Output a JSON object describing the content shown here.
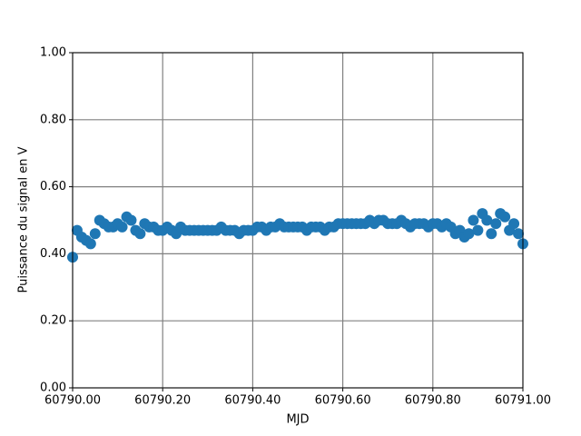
{
  "chart_data": {
    "type": "scatter",
    "x_label": "MJD",
    "y_label": "Puissance du signal en V",
    "color": "#1f77b4",
    "grid": true,
    "xlim": [
      60790,
      60791
    ],
    "xticks": [
      {
        "value": 60790,
        "label": "60790.00"
      },
      {
        "value": 60790.2,
        "label": "60790.20"
      },
      {
        "value": 60790.4,
        "label": "60790.40"
      },
      {
        "value": 60790.6,
        "label": "60790.60"
      },
      {
        "value": 60790.8,
        "label": "60790.80"
      },
      {
        "value": 60791,
        "label": "60791.00"
      }
    ],
    "ylim": [
      0,
      1
    ],
    "yticks": [
      {
        "value": 0,
        "label": "0.00"
      },
      {
        "value": 0.2,
        "label": "0.20"
      },
      {
        "value": 0.4,
        "label": "0.40"
      },
      {
        "value": 0.6,
        "label": "0.60"
      },
      {
        "value": 0.8,
        "label": "0.80"
      },
      {
        "value": 1,
        "label": "1.00"
      }
    ],
    "x": [
      60790,
      60790.01,
      60790.02,
      60790.03,
      60790.04,
      60790.05,
      60790.06,
      60790.07,
      60790.08,
      60790.09,
      60790.1,
      60790.11,
      60790.12,
      60790.13,
      60790.14,
      60790.15,
      60790.16,
      60790.17,
      60790.18,
      60790.19,
      60790.2,
      60790.21,
      60790.22,
      60790.23,
      60790.24,
      60790.25,
      60790.26,
      60790.27,
      60790.28,
      60790.29,
      60790.3,
      60790.31,
      60790.32,
      60790.33,
      60790.34,
      60790.35,
      60790.36,
      60790.37,
      60790.38,
      60790.39,
      60790.4,
      60790.41,
      60790.42,
      60790.43,
      60790.44,
      60790.45,
      60790.46,
      60790.47,
      60790.48,
      60790.49,
      60790.5,
      60790.51,
      60790.52,
      60790.53,
      60790.54,
      60790.55,
      60790.56,
      60790.57,
      60790.58,
      60790.59,
      60790.6,
      60790.61,
      60790.62,
      60790.63,
      60790.64,
      60790.65,
      60790.66,
      60790.67,
      60790.68,
      60790.69,
      60790.7,
      60790.71,
      60790.72,
      60790.73,
      60790.74,
      60790.75,
      60790.76,
      60790.77,
      60790.78,
      60790.79,
      60790.8,
      60790.81,
      60790.82,
      60790.83,
      60790.84,
      60790.85,
      60790.86,
      60790.87,
      60790.88,
      60790.89,
      60790.9,
      60790.91,
      60790.92,
      60790.93,
      60790.94,
      60790.95,
      60790.96,
      60790.97,
      60790.98,
      60790.99,
      60791
    ],
    "values": [
      0.39,
      0.47,
      0.45,
      0.44,
      0.43,
      0.46,
      0.5,
      0.49,
      0.48,
      0.48,
      0.49,
      0.48,
      0.51,
      0.5,
      0.47,
      0.46,
      0.49,
      0.48,
      0.48,
      0.47,
      0.47,
      0.48,
      0.47,
      0.46,
      0.48,
      0.47,
      0.47,
      0.47,
      0.47,
      0.47,
      0.47,
      0.47,
      0.47,
      0.48,
      0.47,
      0.47,
      0.47,
      0.46,
      0.47,
      0.47,
      0.47,
      0.48,
      0.48,
      0.47,
      0.48,
      0.48,
      0.49,
      0.48,
      0.48,
      0.48,
      0.48,
      0.48,
      0.47,
      0.48,
      0.48,
      0.48,
      0.47,
      0.48,
      0.48,
      0.49,
      0.49,
      0.49,
      0.49,
      0.49,
      0.49,
      0.49,
      0.5,
      0.49,
      0.5,
      0.5,
      0.49,
      0.49,
      0.49,
      0.5,
      0.49,
      0.48,
      0.49,
      0.49,
      0.49,
      0.48,
      0.49,
      0.49,
      0.48,
      0.49,
      0.48,
      0.46,
      0.47,
      0.45,
      0.46,
      0.5,
      0.47,
      0.52,
      0.5,
      0.46,
      0.49,
      0.52,
      0.51,
      0.47,
      0.49,
      0.46,
      0.43
    ]
  }
}
